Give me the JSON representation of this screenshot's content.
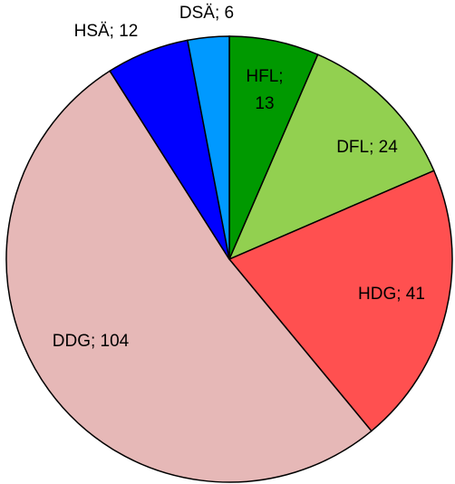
{
  "chart_data": {
    "type": "pie",
    "values": [
      13,
      24,
      41,
      104,
      12,
      6
    ],
    "value_labels": [
      "HFL; 13",
      "DFL; 24",
      "HDG; 41",
      "DDG; 104",
      "HSÄ; 12",
      "DSÄ; 6"
    ],
    "colors": [
      "#009900",
      "#92d050",
      "#ff5050",
      "#e6b8b7",
      "#0000ff",
      "#0099ff"
    ]
  }
}
